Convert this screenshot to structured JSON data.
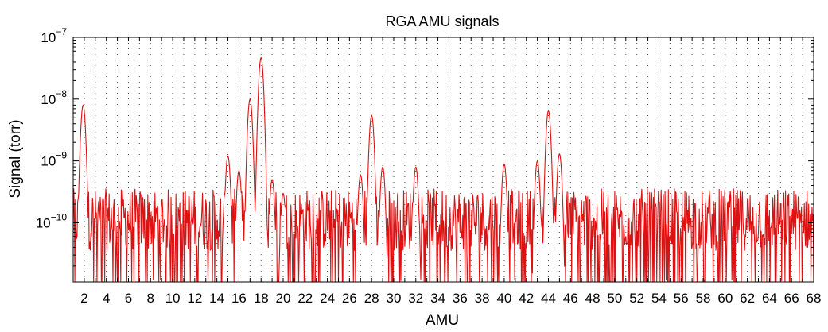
{
  "chart_data": {
    "type": "line",
    "title": "RGA AMU signals",
    "xlabel": "AMU",
    "ylabel": "Signal (torr)",
    "xlim": [
      1,
      68
    ],
    "ylim": [
      1.1e-11,
      1e-07
    ],
    "y_scale": "log",
    "grid": "x-dotted",
    "colors": {
      "line": "#dd1111",
      "axes": "#000000",
      "grid": "#555555"
    },
    "x_ticks": [
      2,
      4,
      6,
      8,
      10,
      12,
      14,
      16,
      18,
      20,
      22,
      24,
      26,
      28,
      30,
      32,
      34,
      36,
      38,
      40,
      42,
      44,
      46,
      48,
      50,
      52,
      54,
      56,
      58,
      60,
      62,
      64,
      66,
      68
    ],
    "y_ticks": [
      {
        "value": 1e-10,
        "base": "10",
        "exp": "−10"
      },
      {
        "value": 1e-09,
        "base": "10",
        "exp": "−9"
      },
      {
        "value": 1e-08,
        "base": "10",
        "exp": "−8"
      },
      {
        "value": 1e-07,
        "base": "10",
        "exp": "−7"
      }
    ],
    "series": [
      {
        "color": "#dd1111",
        "peaks": [
          {
            "amu": 1.9,
            "value": 8e-09
          },
          {
            "amu": 15.0,
            "value": 1.2e-09
          },
          {
            "amu": 16.0,
            "value": 7e-10
          },
          {
            "amu": 17.0,
            "value": 1e-08
          },
          {
            "amu": 18.0,
            "value": 4.7e-08
          },
          {
            "amu": 19.0,
            "value": 5e-10
          },
          {
            "amu": 20.0,
            "value": 3e-10
          },
          {
            "amu": 27.0,
            "value": 6e-10
          },
          {
            "amu": 28.0,
            "value": 5.5e-09
          },
          {
            "amu": 29.0,
            "value": 8e-10
          },
          {
            "amu": 32.0,
            "value": 8e-10
          },
          {
            "amu": 40.0,
            "value": 9e-10
          },
          {
            "amu": 43.0,
            "value": 1e-09
          },
          {
            "amu": 44.0,
            "value": 6.5e-09
          },
          {
            "amu": 45.0,
            "value": 1.3e-09
          }
        ],
        "baseline": 1e-10,
        "floor": 1.1e-11
      }
    ]
  }
}
